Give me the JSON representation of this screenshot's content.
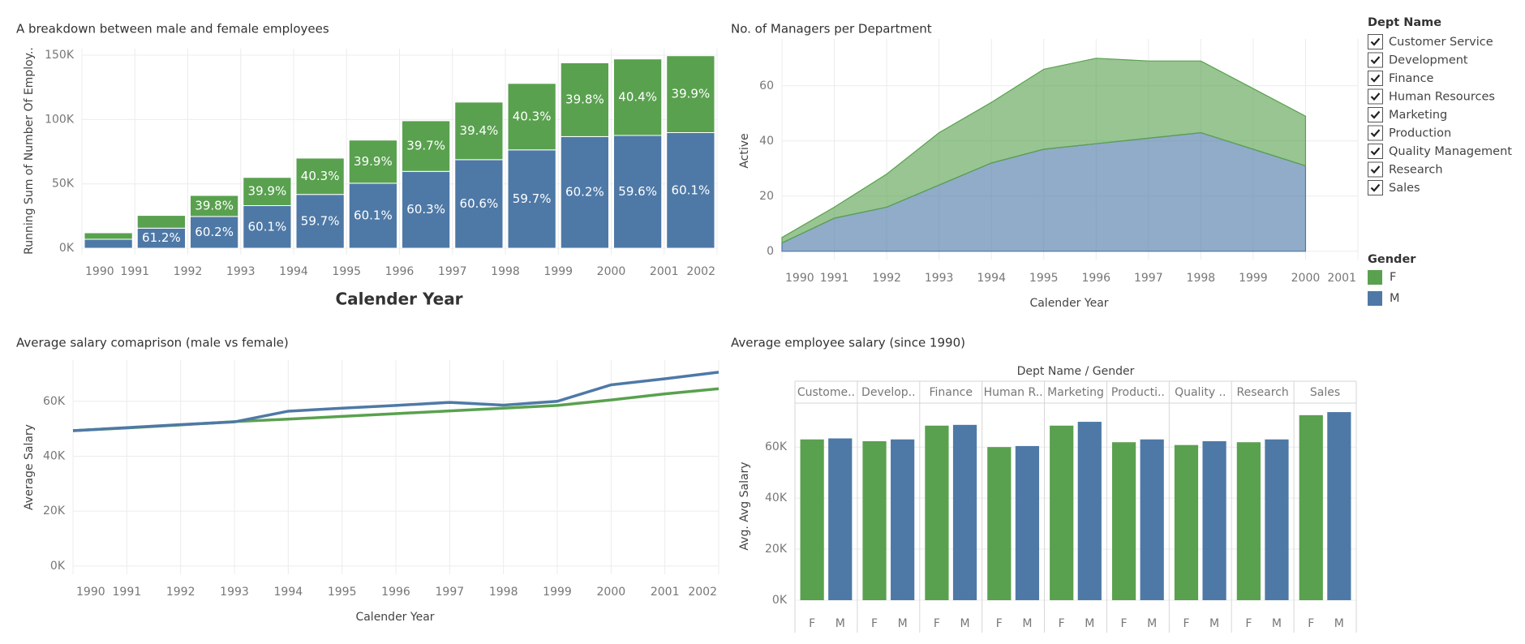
{
  "chart_data": [
    {
      "type": "stacked_bar",
      "title": "A breakdown between male and female employees",
      "x_label": "Calender Year",
      "y_label": "Running Sum of Number Of Employ..",
      "x": [
        1990,
        1991,
        1992,
        1993,
        1994,
        1995,
        1996,
        1997,
        1998,
        1999,
        2000,
        2001
      ],
      "xlim": [
        1990,
        2002
      ],
      "xticks": [
        1990,
        1991,
        1992,
        1993,
        1994,
        1995,
        1996,
        1997,
        1998,
        1999,
        2000,
        2001,
        2002
      ],
      "ylim": [
        -5000,
        155000
      ],
      "yticks": [
        {
          "value": 0,
          "label": "0K"
        },
        {
          "value": 50000,
          "label": "50K"
        },
        {
          "value": 100000,
          "label": "100K"
        },
        {
          "value": 150000,
          "label": "150K"
        }
      ],
      "grid": true,
      "series": [
        {
          "color": "#59a14f",
          "values": [
            5000,
            9900,
            16300,
            21900,
            28200,
            33500,
            39300,
            44700,
            51600,
            57300,
            59400,
            59700
          ],
          "share_labels": [
            null,
            null,
            "39.8%",
            "39.9%",
            "40.3%",
            "39.9%",
            "39.7%",
            "39.4%",
            "40.3%",
            "39.8%",
            "40.4%",
            "39.9%"
          ]
        },
        {
          "color": "#4e79a7",
          "values": [
            7000,
            15600,
            24700,
            33100,
            41800,
            50500,
            59700,
            68800,
            76400,
            86700,
            87600,
            89800
          ],
          "share_labels": [
            null,
            "61.2%",
            "60.2%",
            "60.1%",
            "59.7%",
            "60.1%",
            "60.3%",
            "60.6%",
            "59.7%",
            "60.2%",
            "59.6%",
            "60.1%"
          ]
        }
      ]
    },
    {
      "type": "stacked_area",
      "title": "No. of Managers per Department",
      "x_label": "Calender Year",
      "y_label": "Active",
      "legend_title": "Gender",
      "x": [
        1990,
        1991,
        1992,
        1993,
        1994,
        1995,
        1996,
        1997,
        1998,
        1999,
        2000
      ],
      "xlim": [
        1990,
        2001
      ],
      "xticks": [
        1990,
        1991,
        1992,
        1993,
        1994,
        1995,
        1996,
        1997,
        1998,
        1999,
        2000,
        2001
      ],
      "ylim": [
        -3,
        77
      ],
      "yticks": [
        0,
        20,
        40,
        60
      ],
      "grid": true,
      "series": [
        {
          "name": "F",
          "color": "#59a14f",
          "values": [
            2,
            4,
            12,
            19,
            22,
            29,
            31,
            28,
            26,
            22,
            18
          ]
        },
        {
          "name": "M",
          "color": "#4e79a7",
          "values": [
            3,
            12,
            16,
            24,
            32,
            37,
            39,
            41,
            43,
            37,
            31
          ]
        }
      ]
    },
    {
      "type": "line",
      "title": "Average salary comaprison (male vs female)",
      "x_label": "Calender Year",
      "y_label": "Average Salary",
      "x": [
        1990,
        1991,
        1992,
        1993,
        1994,
        1995,
        1996,
        1997,
        1998,
        1999,
        2000,
        2001,
        2002
      ],
      "xlim": [
        1990,
        2002
      ],
      "xticks": [
        1990,
        1991,
        1992,
        1993,
        1994,
        1995,
        1996,
        1997,
        1998,
        1999,
        2000,
        2001,
        2002
      ],
      "ylim": [
        -3000,
        75000
      ],
      "yticks": [
        {
          "value": 0,
          "label": "0K"
        },
        {
          "value": 20000,
          "label": "20K"
        },
        {
          "value": 40000,
          "label": "40K"
        },
        {
          "value": 60000,
          "label": "60K"
        }
      ],
      "grid": true,
      "series": [
        {
          "color": "#59a14f",
          "values": [
            49300,
            50300,
            51400,
            52600,
            53500,
            54500,
            55500,
            56500,
            57500,
            58500,
            60500,
            62700,
            64600
          ]
        },
        {
          "color": "#4e79a7",
          "values": [
            49300,
            50400,
            51500,
            52500,
            56400,
            57500,
            58500,
            59600,
            58600,
            60000,
            66000,
            68200,
            70600
          ]
        }
      ]
    },
    {
      "type": "grouped_bar",
      "title": "Average employee salary (since 1990)",
      "header": "Dept Name  /  Gender",
      "y_label": "Avg. Avg Salary",
      "categories": [
        "Custome..",
        "Develop..",
        "Finance",
        "Human R..",
        "Marketing",
        "Producti..",
        "Quality ..",
        "Research",
        "Sales"
      ],
      "group_labels": [
        "F",
        "M"
      ],
      "ylim": [
        -3500,
        75000
      ],
      "yticks": [
        {
          "value": 0,
          "label": "0K"
        },
        {
          "value": 20000,
          "label": "20K"
        },
        {
          "value": 40000,
          "label": "40K"
        },
        {
          "value": 60000,
          "label": "60K"
        }
      ],
      "grid": true,
      "series": [
        {
          "color": "#59a14f",
          "values": [
            63000,
            62300,
            68400,
            60000,
            68400,
            61900,
            60800,
            61900,
            72500
          ]
        },
        {
          "color": "#4e79a7",
          "values": [
            63400,
            63000,
            68700,
            60400,
            69900,
            63000,
            62300,
            63000,
            73700
          ]
        }
      ]
    }
  ],
  "filter": {
    "title": "Dept Name",
    "items": [
      "Customer Service",
      "Development",
      "Finance",
      "Human Resources",
      "Marketing",
      "Production",
      "Quality Management",
      "Research",
      "Sales"
    ]
  }
}
